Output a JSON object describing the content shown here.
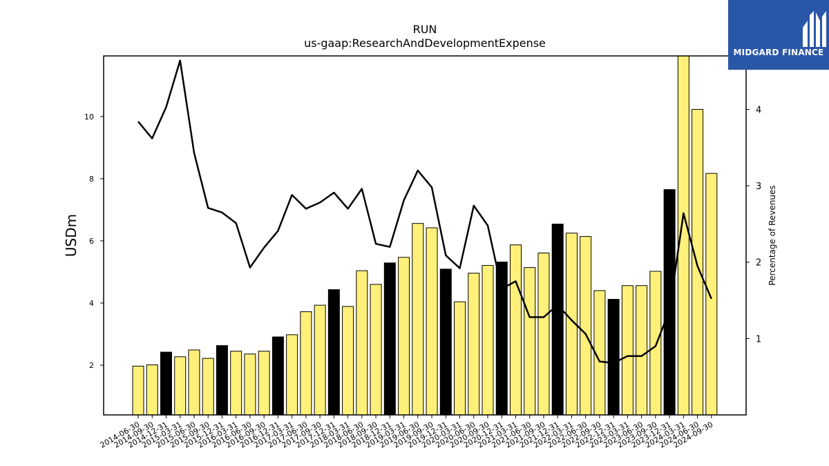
{
  "chart_data": {
    "type": "bar",
    "title": "RUN",
    "subtitle": "us-gaap:ResearchAndDevelopmentExpense",
    "ylabel": "USDm",
    "y2label": "Percentage of Revenues",
    "ylim": [
      0.4,
      11.95
    ],
    "y2lim": [
      0,
      4.7
    ],
    "yticks": [
      2,
      4,
      6,
      8,
      10
    ],
    "y2ticks": [
      1,
      2,
      3,
      4
    ],
    "grid": false,
    "categories": [
      "2014-06-30",
      "2014-09-30",
      "2014-12-31",
      "2015-03-31",
      "2015-06-30",
      "2015-09-30",
      "2015-12-31",
      "2016-03-31",
      "2016-06-30",
      "2016-09-30",
      "2016-12-31",
      "2017-03-31",
      "2017-06-30",
      "2017-09-30",
      "2017-12-31",
      "2018-03-31",
      "2018-06-30",
      "2018-09-30",
      "2018-12-31",
      "2019-03-31",
      "2019-06-30",
      "2019-09-30",
      "2019-12-31",
      "2020-03-31",
      "2020-06-30",
      "2020-09-30",
      "2020-12-31",
      "2021-03-31",
      "2021-06-30",
      "2021-09-30",
      "2021-12-31",
      "2022-03-31",
      "2022-06-30",
      "2022-09-30",
      "2022-12-31",
      "2023-03-31",
      "2023-06-30",
      "2023-09-30",
      "2023-12-31",
      "2024-03-31",
      "2024-06-30",
      "2024-09-30"
    ],
    "series": [
      {
        "kind": "bar",
        "values": [
          1.97,
          2.01,
          2.42,
          2.27,
          2.49,
          2.22,
          2.63,
          2.45,
          2.36,
          2.45,
          2.91,
          2.98,
          3.72,
          3.93,
          4.43,
          3.89,
          5.04,
          4.6,
          5.29,
          5.47,
          6.56,
          6.42,
          5.09,
          4.04,
          4.96,
          5.21,
          5.32,
          5.87,
          5.14,
          5.61,
          6.54,
          6.25,
          6.14,
          4.4,
          4.12,
          4.56,
          4.56,
          5.02,
          7.65,
          11.95,
          10.23,
          8.17
        ],
        "colors": [
          "#fff07a",
          "#fff07a",
          "#000000",
          "#fff07a",
          "#fff07a",
          "#fff07a",
          "#000000",
          "#fff07a",
          "#fff07a",
          "#fff07a",
          "#000000",
          "#fff07a",
          "#fff07a",
          "#fff07a",
          "#000000",
          "#fff07a",
          "#fff07a",
          "#fff07a",
          "#000000",
          "#fff07a",
          "#fff07a",
          "#fff07a",
          "#000000",
          "#fff07a",
          "#fff07a",
          "#fff07a",
          "#000000",
          "#fff07a",
          "#fff07a",
          "#fff07a",
          "#000000",
          "#fff07a",
          "#fff07a",
          "#fff07a",
          "#000000",
          "#fff07a",
          "#fff07a",
          "#fff07a",
          "#000000",
          "#fff07a",
          "#fff07a",
          "#fff07a"
        ]
      },
      {
        "kind": "line",
        "axis": "right",
        "color": "#000000",
        "values": [
          3.84,
          3.62,
          4.03,
          4.64,
          3.43,
          2.71,
          2.65,
          2.51,
          1.93,
          2.19,
          2.41,
          2.88,
          2.7,
          2.78,
          2.91,
          2.7,
          2.96,
          2.24,
          2.2,
          2.81,
          3.2,
          2.98,
          2.09,
          1.92,
          2.74,
          2.48,
          1.65,
          1.75,
          1.28,
          1.28,
          1.44,
          1.24,
          1.06,
          0.7,
          0.68,
          0.77,
          0.77,
          0.9,
          1.37,
          2.64,
          1.95,
          1.52
        ]
      }
    ]
  },
  "logo": {
    "text": "MIDGARD FINANCE",
    "icon": "midgard-logo-icon",
    "color": "#2a56a8"
  }
}
